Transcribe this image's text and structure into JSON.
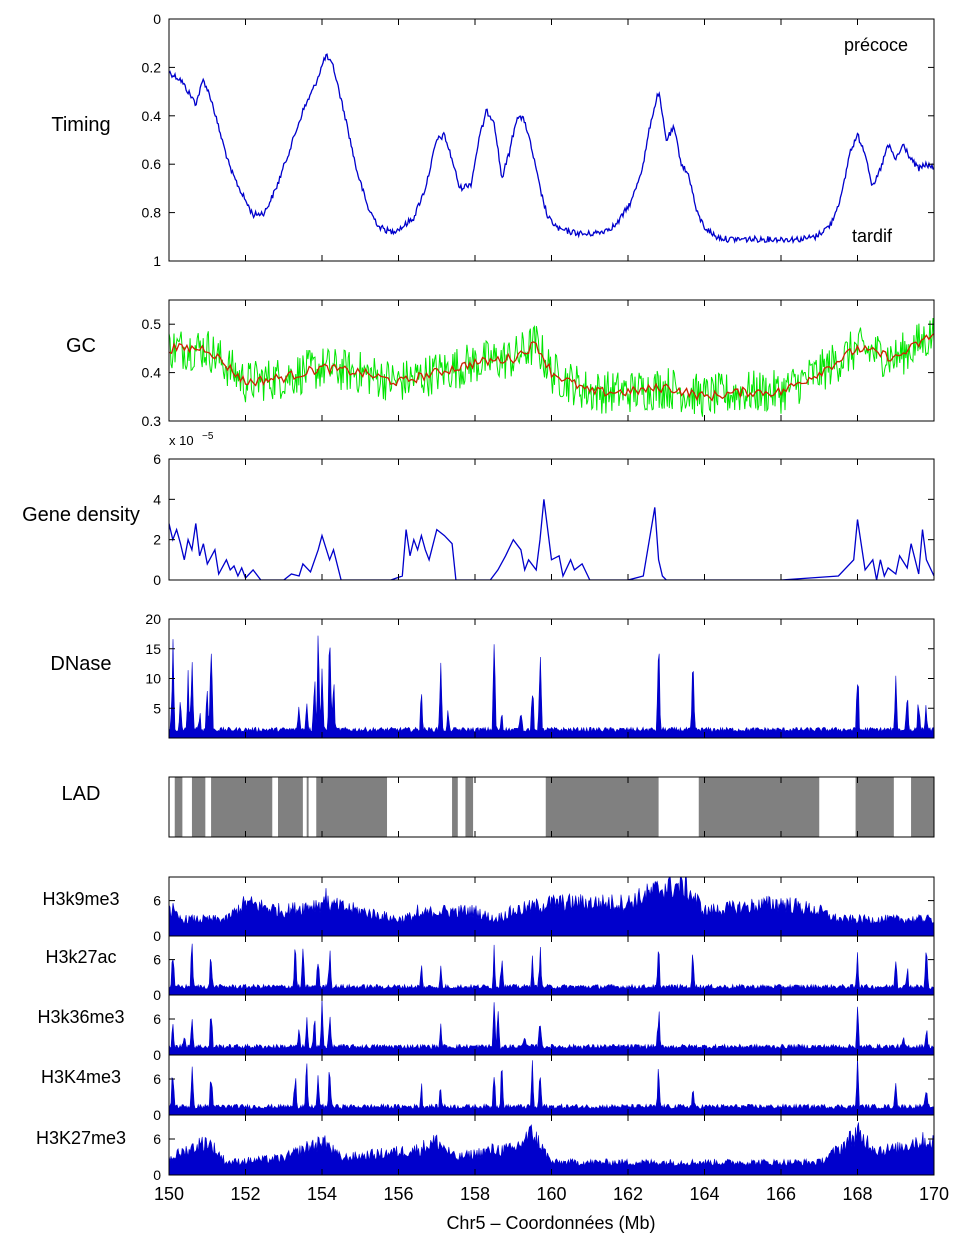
{
  "figure": {
    "xlabel": "Chr5 – Coordonnées (Mb)",
    "xlim": [
      150,
      170
    ],
    "xticks": [
      150,
      152,
      154,
      156,
      158,
      160,
      162,
      164,
      166,
      168,
      170
    ]
  },
  "chart_data": [
    {
      "id": "timing",
      "type": "line",
      "ylabel": "Timing",
      "ylim": [
        0,
        1
      ],
      "y_reversed": true,
      "yticks": [
        0,
        0.2,
        0.4,
        0.6,
        0.8,
        1
      ],
      "ytick_labels": [
        "0",
        "0.2",
        "0.4",
        "0.6",
        "0.8",
        "1"
      ],
      "annotations": [
        "précoce",
        "tardif"
      ],
      "color": "#0000cc",
      "series": [
        {
          "x": [
            150.0,
            150.3,
            150.5,
            150.7,
            150.9,
            151.1,
            151.3,
            151.6,
            151.9,
            152.2,
            152.5,
            152.8,
            153.2,
            153.5,
            153.8,
            154.1,
            154.3,
            154.6,
            154.9,
            155.2,
            155.5,
            155.8,
            156.1,
            156.4,
            156.7,
            157.0,
            157.2,
            157.4,
            157.6,
            157.9,
            158.1,
            158.3,
            158.5,
            158.7,
            158.9,
            159.1,
            159.3,
            159.5,
            159.7,
            159.9,
            160.2,
            160.5,
            160.9,
            161.3,
            161.7,
            162.1,
            162.4,
            162.6,
            162.8,
            163.0,
            163.2,
            163.4,
            163.6,
            163.8,
            164.0,
            164.3,
            164.6,
            165.0,
            165.5,
            166.0,
            166.5,
            166.9,
            167.3,
            167.6,
            167.8,
            168.0,
            168.2,
            168.4,
            168.6,
            168.8,
            169.0,
            169.2,
            169.4,
            169.6,
            169.8,
            170.0
          ],
          "y": [
            0.22,
            0.25,
            0.3,
            0.35,
            0.25,
            0.33,
            0.45,
            0.62,
            0.72,
            0.81,
            0.8,
            0.7,
            0.52,
            0.38,
            0.28,
            0.15,
            0.2,
            0.4,
            0.62,
            0.78,
            0.86,
            0.88,
            0.86,
            0.82,
            0.7,
            0.5,
            0.48,
            0.58,
            0.7,
            0.68,
            0.5,
            0.38,
            0.42,
            0.66,
            0.55,
            0.4,
            0.42,
            0.55,
            0.7,
            0.82,
            0.87,
            0.88,
            0.89,
            0.88,
            0.85,
            0.75,
            0.6,
            0.42,
            0.3,
            0.5,
            0.45,
            0.6,
            0.65,
            0.8,
            0.86,
            0.9,
            0.91,
            0.91,
            0.91,
            0.91,
            0.91,
            0.9,
            0.85,
            0.72,
            0.55,
            0.48,
            0.55,
            0.7,
            0.62,
            0.52,
            0.58,
            0.52,
            0.58,
            0.62,
            0.6,
            0.62
          ]
        }
      ]
    },
    {
      "id": "gc",
      "type": "line",
      "ylabel": "GC",
      "ylim": [
        0.3,
        0.55
      ],
      "yticks": [
        0.3,
        0.4,
        0.5
      ],
      "ytick_labels": [
        "0.3",
        "0.4",
        "0.5"
      ],
      "series": [
        {
          "color": "#00e600",
          "noisy": true,
          "x": [
            150,
            151,
            152,
            153,
            154,
            155,
            156,
            157,
            158,
            159,
            159.6,
            160,
            161,
            162,
            163,
            164,
            165,
            166,
            167,
            168,
            169,
            170
          ],
          "y": [
            0.45,
            0.45,
            0.38,
            0.39,
            0.41,
            0.4,
            0.38,
            0.4,
            0.42,
            0.43,
            0.46,
            0.4,
            0.36,
            0.36,
            0.37,
            0.35,
            0.36,
            0.36,
            0.4,
            0.45,
            0.43,
            0.48
          ]
        },
        {
          "color": "#cc2200",
          "x": [
            150,
            151,
            152,
            153,
            154,
            155,
            156,
            157,
            158,
            159,
            159.6,
            160,
            161,
            162,
            163,
            164,
            165,
            166,
            167,
            168,
            169,
            170
          ],
          "y": [
            0.45,
            0.45,
            0.38,
            0.39,
            0.41,
            0.4,
            0.38,
            0.4,
            0.42,
            0.43,
            0.46,
            0.4,
            0.36,
            0.36,
            0.37,
            0.35,
            0.36,
            0.36,
            0.4,
            0.45,
            0.43,
            0.48
          ]
        }
      ]
    },
    {
      "id": "gene-density",
      "type": "line",
      "ylabel": "Gene density",
      "ylim": [
        0,
        6
      ],
      "exponent_label": "x 10",
      "exponent_power": "−5",
      "yticks": [
        0,
        2,
        4,
        6
      ],
      "ytick_labels": [
        "0",
        "2",
        "4",
        "6"
      ],
      "color": "#0000cc",
      "series": [
        {
          "x": [
            150.0,
            150.1,
            150.2,
            150.3,
            150.4,
            150.5,
            150.6,
            150.7,
            150.8,
            150.9,
            151.0,
            151.2,
            151.3,
            151.5,
            151.6,
            151.7,
            151.8,
            151.9,
            152.0,
            152.2,
            152.4,
            153.0,
            153.2,
            153.4,
            153.5,
            153.7,
            153.9,
            154.0,
            154.2,
            154.3,
            154.5,
            155.0,
            155.8,
            156.1,
            156.2,
            156.3,
            156.4,
            156.5,
            156.6,
            156.7,
            156.8,
            157.0,
            157.2,
            157.4,
            157.5,
            158.0,
            158.4,
            158.6,
            158.8,
            159.0,
            159.2,
            159.3,
            159.4,
            159.6,
            159.7,
            159.8,
            160.0,
            160.2,
            160.3,
            160.5,
            160.6,
            160.8,
            161.0,
            161.3,
            162.0,
            162.4,
            162.7,
            162.8,
            162.9,
            163.0,
            164.0,
            166.0,
            167.5,
            167.9,
            168.0,
            168.2,
            168.4,
            168.5,
            168.6,
            168.7,
            168.8,
            169.0,
            169.1,
            169.3,
            169.4,
            169.6,
            169.7,
            169.8,
            170.0
          ],
          "y": [
            2.8,
            2.0,
            2.5,
            1.8,
            1.0,
            2.0,
            1.5,
            2.8,
            1.2,
            1.8,
            0.8,
            1.5,
            0.3,
            1.0,
            0.5,
            0.7,
            0.2,
            0.6,
            0.1,
            0.5,
            0.0,
            0.0,
            0.3,
            0.2,
            0.8,
            0.4,
            1.5,
            2.2,
            1.0,
            1.5,
            0.0,
            0.0,
            0.0,
            0.2,
            2.5,
            1.2,
            2.0,
            1.5,
            2.2,
            1.5,
            1.0,
            2.5,
            2.2,
            1.8,
            0.0,
            0.0,
            0.0,
            0.5,
            1.2,
            2.0,
            1.5,
            0.5,
            1.0,
            0.5,
            2.0,
            4.0,
            1.0,
            1.2,
            0.2,
            1.0,
            0.5,
            0.8,
            0.0,
            0.0,
            0.0,
            0.2,
            3.6,
            1.0,
            0.2,
            0.0,
            0.0,
            0.0,
            0.2,
            1.0,
            3.0,
            0.5,
            1.0,
            0.0,
            1.0,
            0.2,
            0.6,
            0.3,
            1.2,
            0.6,
            1.8,
            0.3,
            2.5,
            1.0,
            0.2
          ]
        }
      ]
    },
    {
      "id": "dnase",
      "type": "area",
      "ylabel": "DNase",
      "ylim": [
        0,
        20
      ],
      "baseline": 1,
      "yticks": [
        5,
        10,
        15,
        20
      ],
      "ytick_labels": [
        "5",
        "10",
        "15",
        "20"
      ],
      "color": "#0000cc",
      "peaks": [
        [
          150.1,
          20
        ],
        [
          150.3,
          8
        ],
        [
          150.5,
          12
        ],
        [
          150.6,
          20
        ],
        [
          150.8,
          6
        ],
        [
          151.0,
          11
        ],
        [
          151.1,
          20
        ],
        [
          153.4,
          8
        ],
        [
          153.6,
          10
        ],
        [
          153.8,
          14
        ],
        [
          153.9,
          20
        ],
        [
          154.0,
          16
        ],
        [
          154.2,
          20
        ],
        [
          154.3,
          15
        ],
        [
          156.6,
          10
        ],
        [
          157.1,
          15
        ],
        [
          157.3,
          6
        ],
        [
          158.5,
          20
        ],
        [
          158.7,
          6
        ],
        [
          159.2,
          8
        ],
        [
          159.5,
          12
        ],
        [
          159.7,
          20
        ],
        [
          162.8,
          20
        ],
        [
          163.7,
          15
        ],
        [
          168.0,
          16
        ],
        [
          169.0,
          12
        ],
        [
          169.3,
          10
        ],
        [
          169.6,
          9
        ],
        [
          169.8,
          7
        ]
      ]
    },
    {
      "id": "lad",
      "type": "bar",
      "ylabel": "LAD",
      "color": "#808080",
      "segments": [
        [
          150.15,
          150.35
        ],
        [
          150.6,
          150.95
        ],
        [
          151.1,
          152.7
        ],
        [
          152.85,
          153.5
        ],
        [
          153.6,
          153.65
        ],
        [
          153.85,
          155.7
        ],
        [
          157.4,
          157.55
        ],
        [
          157.75,
          157.95
        ],
        [
          159.85,
          162.8
        ],
        [
          163.85,
          167.0
        ],
        [
          167.95,
          168.95
        ],
        [
          169.4,
          170.0
        ]
      ]
    },
    {
      "id": "h3k9me3",
      "type": "area",
      "ylabel": "H3k9me3",
      "ylim": [
        0,
        10
      ],
      "yticks": [
        0,
        6
      ],
      "ytick_labels": [
        "0",
        "6"
      ],
      "color": "#0000cc",
      "levels": [
        [
          150,
          3
        ],
        [
          150.3,
          2
        ],
        [
          151.5,
          2
        ],
        [
          152,
          4
        ],
        [
          153,
          3
        ],
        [
          154,
          4
        ],
        [
          155,
          3
        ],
        [
          156,
          2
        ],
        [
          157,
          3
        ],
        [
          158,
          3
        ],
        [
          158.5,
          2
        ],
        [
          159,
          3
        ],
        [
          160,
          4
        ],
        [
          162,
          4
        ],
        [
          163,
          6
        ],
        [
          163.5,
          6
        ],
        [
          164,
          3
        ],
        [
          166,
          4
        ],
        [
          167,
          3
        ],
        [
          167.5,
          2
        ],
        [
          170,
          2
        ]
      ],
      "peaks": [
        [
          150.1,
          10
        ],
        [
          154.1,
          9
        ],
        [
          154.3,
          8
        ],
        [
          156.5,
          6
        ],
        [
          157.6,
          5
        ],
        [
          169.8,
          5
        ]
      ]
    },
    {
      "id": "h3k27ac",
      "type": "area",
      "ylabel": "H3k27ac",
      "ylim": [
        0,
        10
      ],
      "yticks": [
        0,
        6
      ],
      "ytick_labels": [
        "0",
        "6"
      ],
      "color": "#0000cc",
      "levels": [
        [
          150,
          1
        ],
        [
          170,
          1
        ]
      ],
      "peaks": [
        [
          150.1,
          10
        ],
        [
          150.6,
          10
        ],
        [
          151.1,
          10
        ],
        [
          153.3,
          10
        ],
        [
          153.5,
          10
        ],
        [
          153.9,
          10
        ],
        [
          154.2,
          10
        ],
        [
          156.6,
          6
        ],
        [
          157.1,
          7
        ],
        [
          158.5,
          10
        ],
        [
          158.7,
          10
        ],
        [
          159.5,
          10
        ],
        [
          159.7,
          10
        ],
        [
          162.8,
          10
        ],
        [
          163.7,
          10
        ],
        [
          168.0,
          10
        ],
        [
          169.0,
          9
        ],
        [
          169.3,
          7
        ],
        [
          169.8,
          10
        ]
      ]
    },
    {
      "id": "h3k36me3",
      "type": "area",
      "ylabel": "H3k36me3",
      "ylim": [
        0,
        10
      ],
      "yticks": [
        0,
        6
      ],
      "ytick_labels": [
        "0",
        "6"
      ],
      "color": "#0000cc",
      "levels": [
        [
          150,
          1
        ],
        [
          170,
          1
        ]
      ],
      "peaks": [
        [
          150.1,
          6
        ],
        [
          150.4,
          5
        ],
        [
          150.6,
          8
        ],
        [
          151.1,
          10
        ],
        [
          153.4,
          6
        ],
        [
          153.6,
          7
        ],
        [
          153.8,
          8
        ],
        [
          154.0,
          10
        ],
        [
          154.2,
          10
        ],
        [
          157.1,
          6
        ],
        [
          158.5,
          10
        ],
        [
          158.6,
          8
        ],
        [
          159.3,
          6
        ],
        [
          159.7,
          10
        ],
        [
          162.8,
          10
        ],
        [
          168.0,
          10
        ],
        [
          169.2,
          4
        ],
        [
          169.8,
          6
        ]
      ]
    },
    {
      "id": "h3k4me3",
      "type": "area",
      "ylabel": "H3K4me3",
      "ylim": [
        0,
        10
      ],
      "yticks": [
        0,
        6
      ],
      "ytick_labels": [
        "0",
        "6"
      ],
      "color": "#0000cc",
      "levels": [
        [
          150,
          1
        ],
        [
          170,
          1
        ]
      ],
      "peaks": [
        [
          150.1,
          10
        ],
        [
          150.6,
          10
        ],
        [
          151.1,
          10
        ],
        [
          153.3,
          10
        ],
        [
          153.6,
          10
        ],
        [
          153.9,
          10
        ],
        [
          154.2,
          10
        ],
        [
          156.6,
          6
        ],
        [
          157.1,
          7
        ],
        [
          158.5,
          10
        ],
        [
          158.7,
          10
        ],
        [
          159.5,
          10
        ],
        [
          159.7,
          10
        ],
        [
          162.8,
          10
        ],
        [
          163.7,
          6
        ],
        [
          168.0,
          10
        ],
        [
          169.0,
          8
        ],
        [
          169.8,
          8
        ]
      ]
    },
    {
      "id": "h3k27me3",
      "type": "area",
      "ylabel": "H3K27me3",
      "ylim": [
        0,
        10
      ],
      "yticks": [
        0,
        6
      ],
      "ytick_labels": [
        "0",
        "6"
      ],
      "color": "#0000cc",
      "levels": [
        [
          150,
          2
        ],
        [
          150.5,
          3
        ],
        [
          151,
          4
        ],
        [
          151.5,
          1.5
        ],
        [
          153,
          2
        ],
        [
          153.5,
          3
        ],
        [
          154,
          4
        ],
        [
          154.5,
          2
        ],
        [
          156.5,
          3
        ],
        [
          157,
          4
        ],
        [
          157.5,
          2
        ],
        [
          158.5,
          3
        ],
        [
          159,
          3
        ],
        [
          159.5,
          5
        ],
        [
          160,
          1.5
        ],
        [
          167,
          1.5
        ],
        [
          167.5,
          3
        ],
        [
          168,
          5
        ],
        [
          168.5,
          3
        ],
        [
          169,
          3
        ],
        [
          169.5,
          4
        ],
        [
          170,
          4
        ]
      ],
      "peaks": [
        [
          153.9,
          8
        ],
        [
          154.1,
          6
        ],
        [
          159.6,
          8
        ],
        [
          168.0,
          6
        ]
      ]
    }
  ]
}
